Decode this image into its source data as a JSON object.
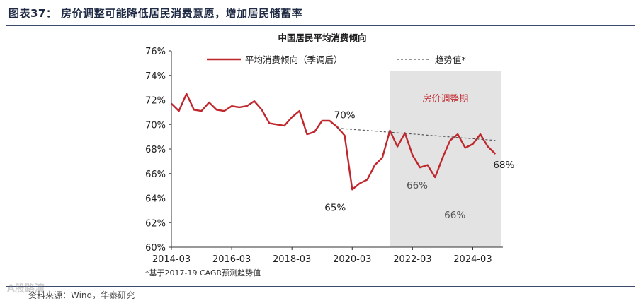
{
  "figure": {
    "title": "图表37：  房价调整可能降低居民消费意愿，增加居民储蓄率",
    "footnote": "*基于2017-19 CAGR预测趋势值",
    "source": "资料来源：Wind，华泰研究",
    "watermark": "A股路演"
  },
  "chart_data": {
    "type": "line",
    "title": "中国居民平均消费倾向",
    "xlabel": "",
    "ylabel": "",
    "ylim": [
      60,
      76
    ],
    "yticks": [
      60,
      62,
      64,
      66,
      68,
      70,
      72,
      74,
      76
    ],
    "ytick_labels": [
      "60%",
      "62%",
      "64%",
      "66%",
      "68%",
      "70%",
      "72%",
      "74%",
      "76%"
    ],
    "xlim": [
      "2014-03",
      "2025-03"
    ],
    "xtick_labels": [
      "2014-03",
      "2016-03",
      "2018-03",
      "2020-03",
      "2022-03",
      "2024-03"
    ],
    "grid": false,
    "legend_position": "top",
    "colors": {
      "series": "#c0272d",
      "trend": "#555555",
      "shade": "#e3e3e3",
      "shade_text": "#c0272d"
    },
    "series": [
      {
        "name": "平均消费倾向（季调后）",
        "style": "solid",
        "x": [
          "2014-03",
          "2014-06",
          "2014-09",
          "2014-12",
          "2015-03",
          "2015-06",
          "2015-09",
          "2015-12",
          "2016-03",
          "2016-06",
          "2016-09",
          "2016-12",
          "2017-03",
          "2017-06",
          "2017-09",
          "2017-12",
          "2018-03",
          "2018-06",
          "2018-09",
          "2018-12",
          "2019-03",
          "2019-06",
          "2019-09",
          "2019-12",
          "2020-03",
          "2020-06",
          "2020-09",
          "2020-12",
          "2021-03",
          "2021-06",
          "2021-09",
          "2021-12",
          "2022-03",
          "2022-06",
          "2022-09",
          "2022-12",
          "2023-03",
          "2023-06",
          "2023-09",
          "2023-12",
          "2024-03",
          "2024-06",
          "2024-09",
          "2024-12"
        ],
        "values": [
          71.7,
          71.1,
          72.5,
          71.2,
          71.1,
          71.8,
          71.2,
          71.1,
          71.5,
          71.4,
          71.5,
          71.9,
          71.2,
          70.1,
          70.0,
          69.9,
          70.6,
          71.1,
          69.2,
          69.4,
          70.3,
          70.3,
          69.8,
          69.1,
          64.7,
          65.2,
          65.5,
          66.7,
          67.3,
          69.5,
          68.2,
          69.3,
          67.5,
          66.5,
          66.7,
          65.7,
          67.3,
          68.7,
          69.2,
          68.1,
          68.4,
          69.2,
          68.2,
          67.6
        ]
      },
      {
        "name": "趋势值*",
        "style": "dashed",
        "x": [
          "2019-09",
          "2024-12"
        ],
        "values": [
          69.7,
          68.7
        ]
      }
    ],
    "shaded_region": {
      "x": [
        "2021-06",
        "2024-12"
      ],
      "label": "房价调整期"
    },
    "annotations": [
      {
        "text": "70%",
        "x": "2019-12",
        "y": 69.7
      },
      {
        "text": "65%",
        "x": "2020-03",
        "y": 64.7
      },
      {
        "text": "66%",
        "x": "2022-06",
        "y": 66.5
      },
      {
        "text": "66%",
        "x": "2023-09",
        "y": 65.7
      },
      {
        "text": "68%",
        "x": "2024-12",
        "y": 67.6
      }
    ]
  }
}
